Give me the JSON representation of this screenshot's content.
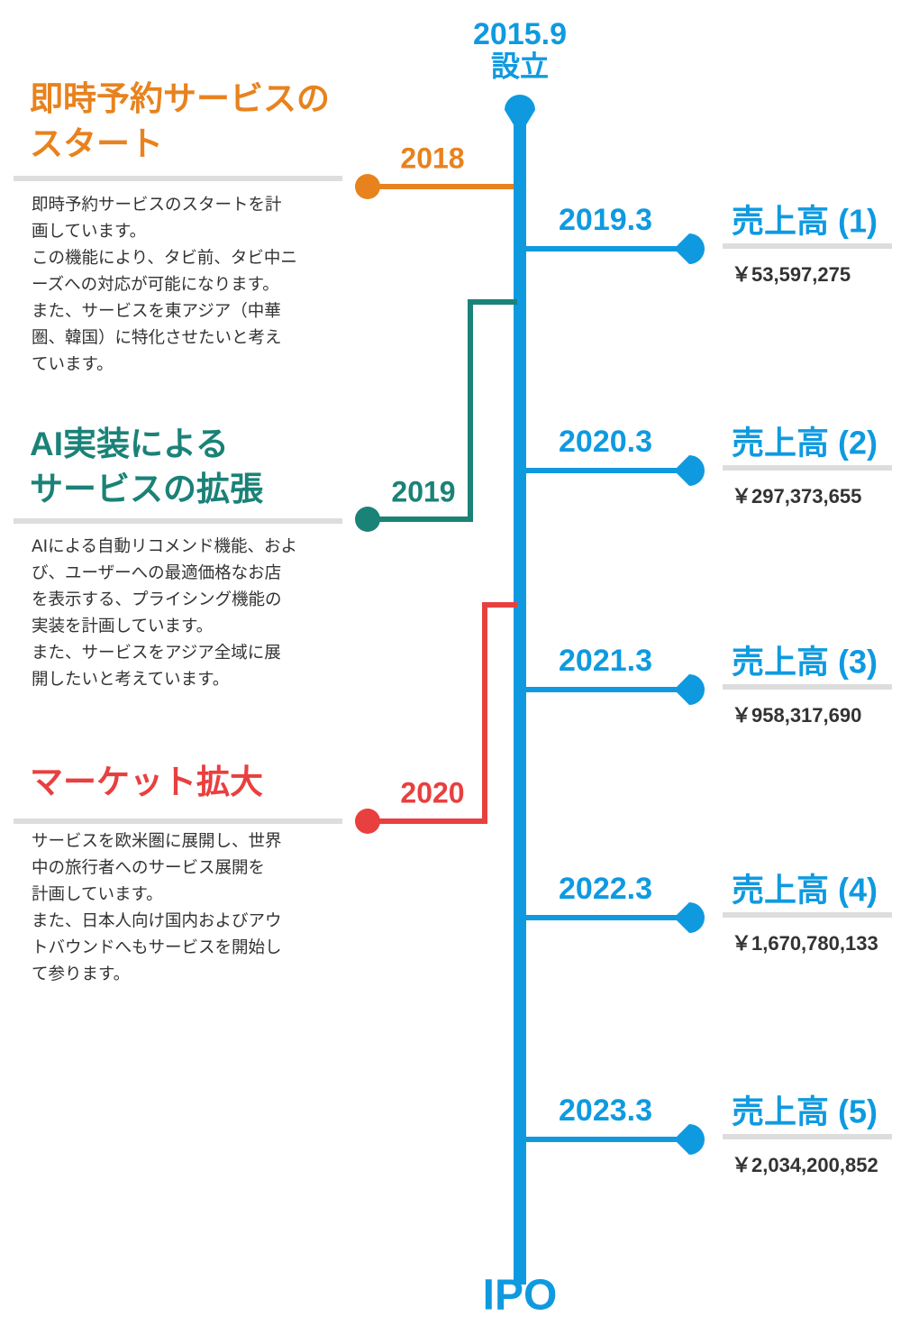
{
  "founding": {
    "date": "2015.9",
    "label": "設立"
  },
  "end": "IPO",
  "plans": [
    {
      "year": "2018",
      "title": [
        "即時予約サービスの",
        "スタート"
      ],
      "body": [
        "即時予約サービスのスタートを計",
        "画しています。",
        "この機能により、タビ前、タビ中ニ",
        "ーズへの対応が可能になります。",
        "また、サービスを東アジア（中華",
        "圏、韓国）に特化させたいと考え",
        "ています。"
      ]
    },
    {
      "year": "2019",
      "title": [
        "AI実装による",
        "サービスの拡張"
      ],
      "body": [
        "AIによる自動リコメンド機能、およ",
        "び、ユーザーへの最適価格なお店",
        "を表示する、プライシング機能の",
        "実装を計画しています。",
        "また、サービスをアジア全域に展",
        "開したいと考えています。"
      ]
    },
    {
      "year": "2020",
      "title": [
        "マーケット拡大"
      ],
      "body": [
        "サービスを欧米圏に展開し、世界",
        "中の旅行者へのサービス展開を",
        "計画しています。",
        "また、日本人向け国内およびアウ",
        "トバウンドへもサービスを開始し",
        "て参ります。"
      ]
    }
  ],
  "milestones": [
    {
      "date": "2019.3",
      "title": "売上高 (1)",
      "amount": "￥53,597,275"
    },
    {
      "date": "2020.3",
      "title": "売上高 (2)",
      "amount": "￥297,373,655"
    },
    {
      "date": "2021.3",
      "title": "売上高 (3)",
      "amount": "￥958,317,690"
    },
    {
      "date": "2022.3",
      "title": "売上高 (4)",
      "amount": "￥1,670,780,133"
    },
    {
      "date": "2023.3",
      "title": "売上高 (5)",
      "amount": "￥2,034,200,852"
    }
  ]
}
